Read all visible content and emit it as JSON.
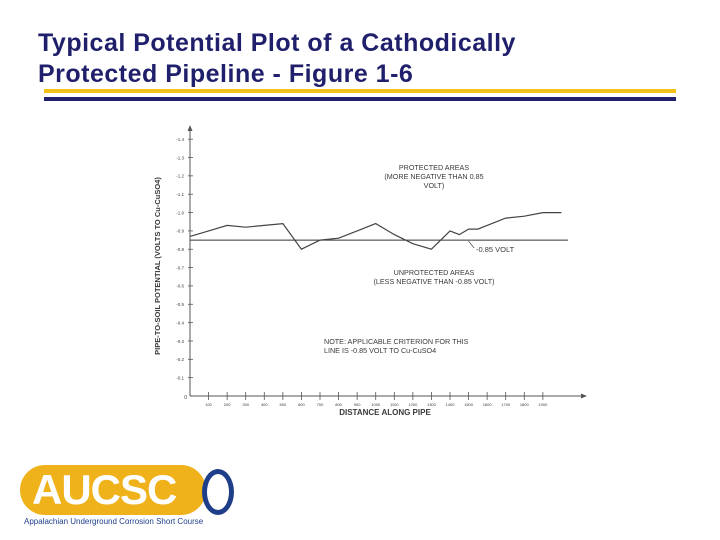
{
  "slide": {
    "title_line1": "Typical Potential Plot of a Cathodically",
    "title_line2": "Protected Pipeline - Figure 1-6"
  },
  "logo": {
    "text": "AUCSC",
    "tagline": "Appalachian Underground Corrosion Short Course"
  },
  "chart_data": {
    "type": "line",
    "xlabel": "DISTANCE ALONG PIPE",
    "ylabel": "PIPE-TO-SOIL POTENTIAL (VOLTS TO Cu-CuSO4)",
    "x_ticks": [
      "100",
      "200",
      "300",
      "400",
      "500",
      "600",
      "700",
      "800",
      "900",
      "1000",
      "1100",
      "1200",
      "1300",
      "1400",
      "1500",
      "1600",
      "1700",
      "1800",
      "1900"
    ],
    "y_ticks": [
      "-1.4",
      "-1.3",
      "-1.2",
      "-1.1",
      "-1.0",
      "-0.9",
      "-0.8",
      "-0.7",
      "-0.6",
      "-0.5",
      "-0.4",
      "-0.3",
      "-0.2",
      "-0.1"
    ],
    "origin_label": "0",
    "xlim": [
      0,
      2100
    ],
    "ylim": [
      0,
      -1.45
    ],
    "series": [
      {
        "x": [
          0,
          100,
          200,
          300,
          400,
          500,
          600,
          700,
          800,
          900,
          1000,
          1100,
          1200,
          1300,
          1400,
          1450,
          1500,
          1550,
          1600,
          1700,
          1800,
          1900,
          2000
        ],
        "y": [
          -0.87,
          -0.9,
          -0.93,
          -0.92,
          -0.93,
          -0.94,
          -0.8,
          -0.85,
          -0.86,
          -0.9,
          -0.94,
          -0.88,
          -0.83,
          -0.8,
          -0.9,
          -0.88,
          -0.91,
          -0.91,
          -0.93,
          -0.97,
          -0.98,
          -1.0,
          -1.0
        ]
      }
    ],
    "criterion": {
      "value": -0.85,
      "label": "-0.85 VOLT"
    },
    "annotations": [
      {
        "lines": [
          "PROTECTED AREAS",
          "(MORE NEGATIVE THAN  0.85",
          "VOLT)"
        ]
      },
      {
        "lines": [
          "UNPROTECTED AREAS",
          "(LESS NEGATIVE THAN  -0.85 VOLT)"
        ]
      },
      {
        "lines": [
          "NOTE: APPLICABLE CRITERION FOR THIS",
          "LINE IS -0.85 VOLT TO Cu-CuSO4"
        ]
      }
    ],
    "grid": false
  }
}
